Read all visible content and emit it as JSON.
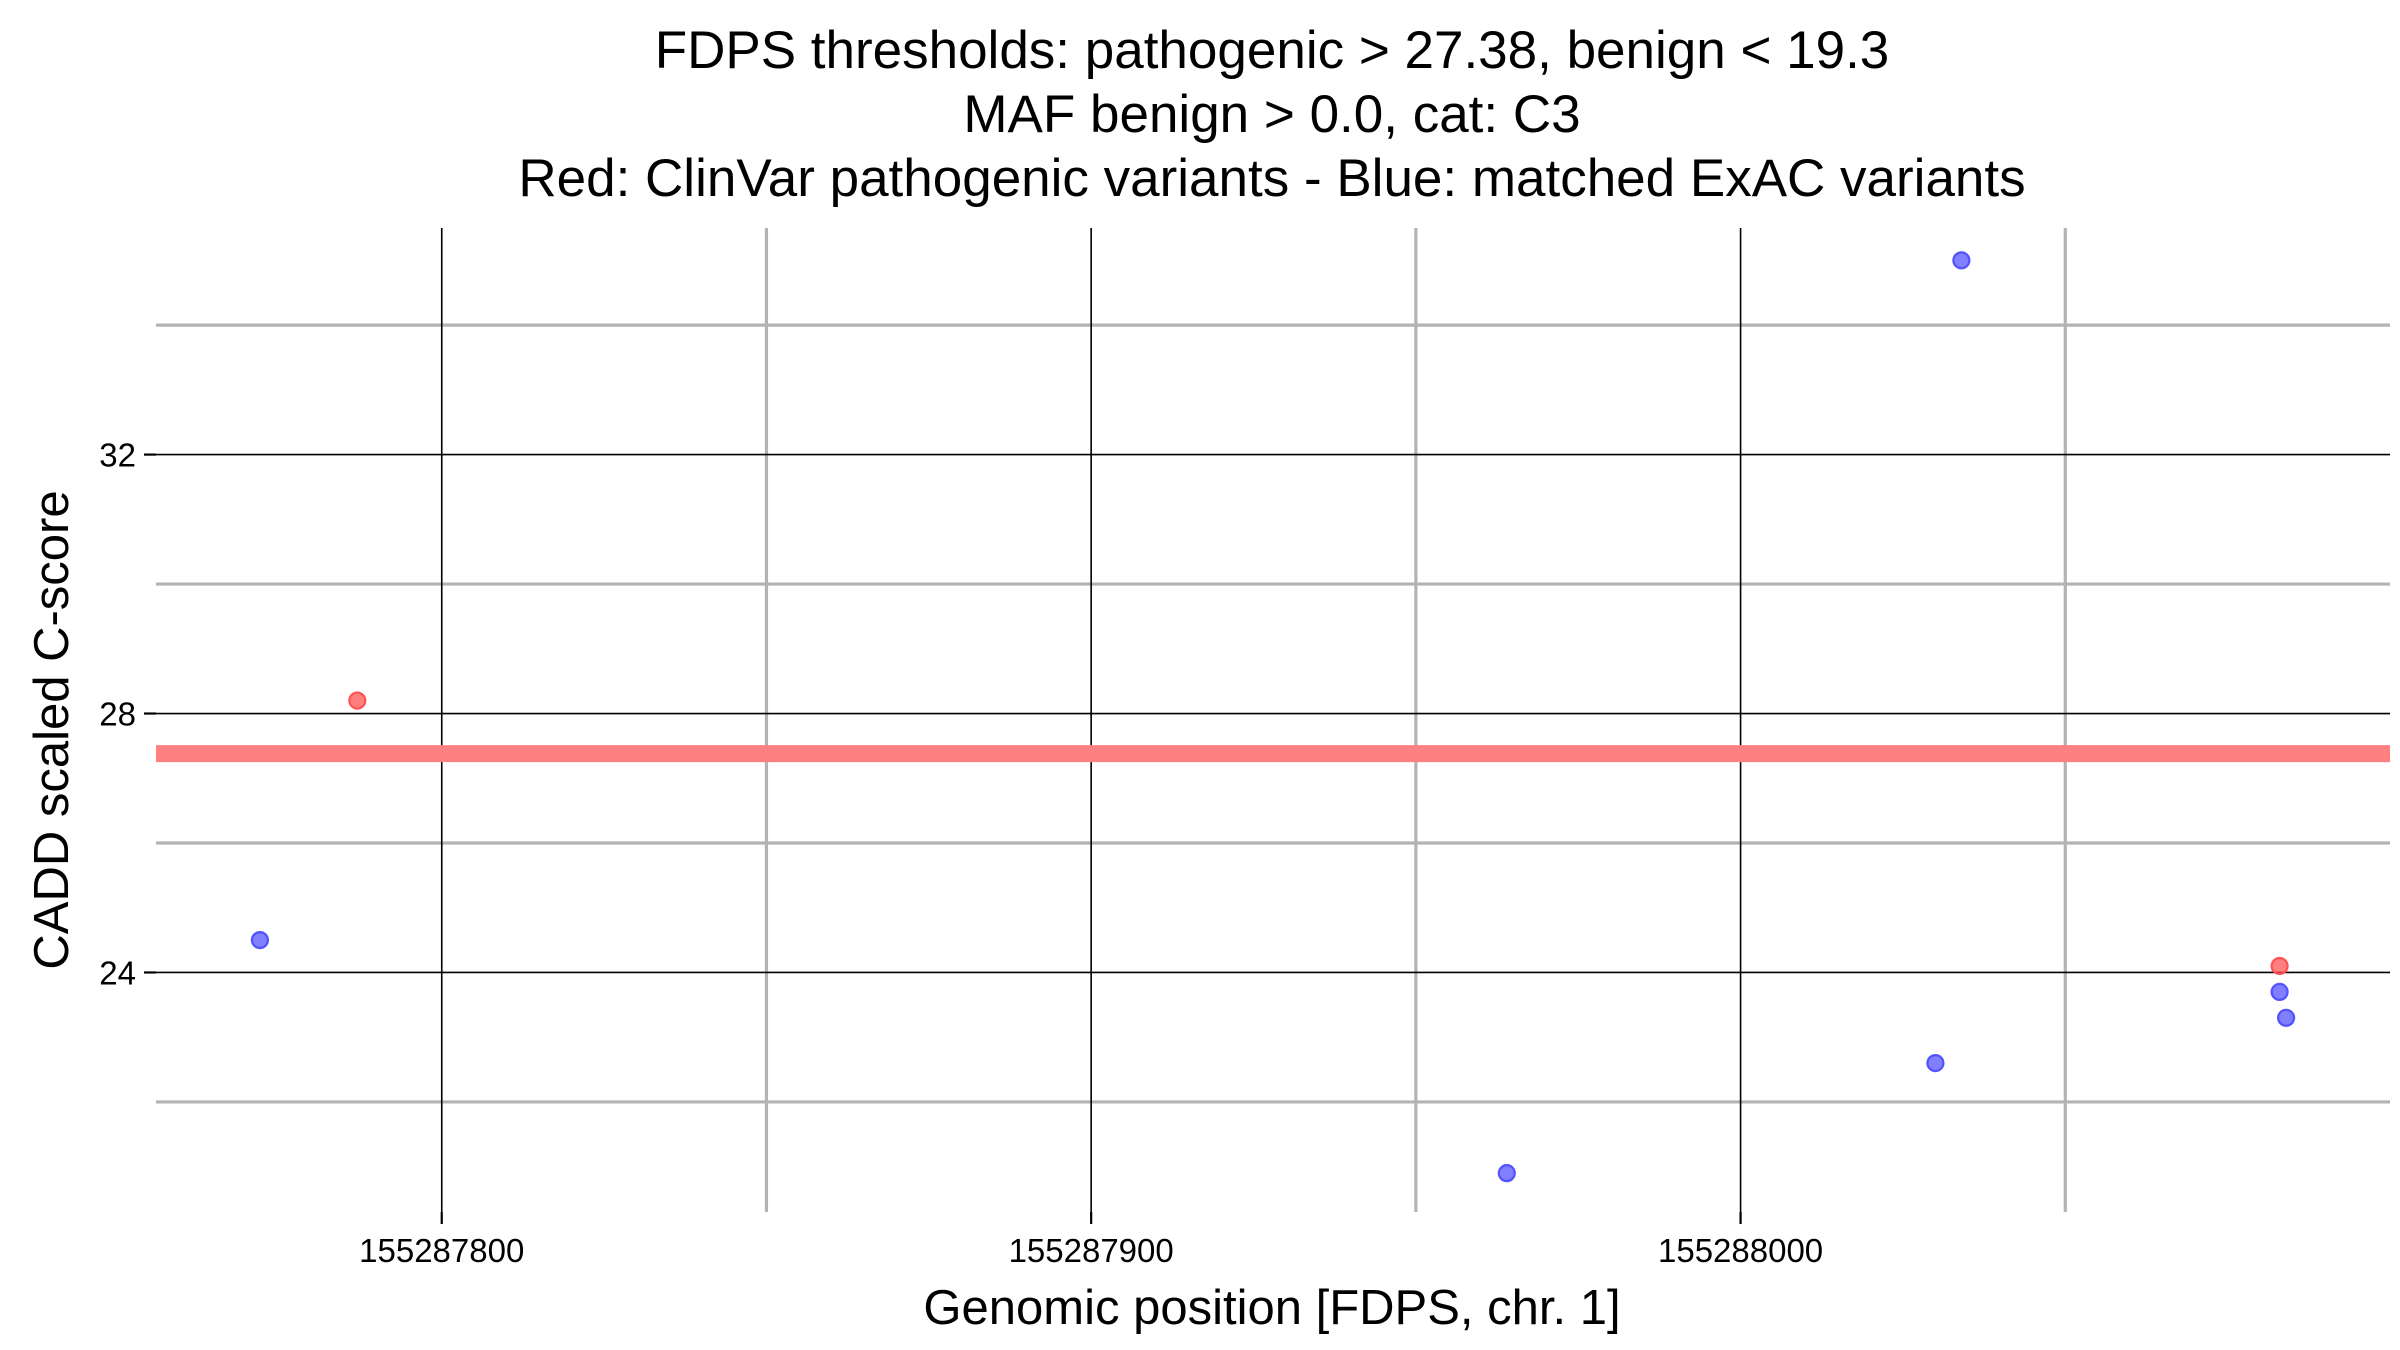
{
  "chart_data": {
    "type": "scatter",
    "title_lines": [
      "FDPS thresholds: pathogenic > 27.38, benign < 19.3",
      "MAF benign > 0.0, cat: C3",
      "Red: ClinVar pathogenic variants - Blue: matched ExAC variants"
    ],
    "xlabel": "Genomic position [FDPS, chr. 1]",
    "ylabel": "CADD scaled C-score",
    "xlim": [
      155287756,
      155288100
    ],
    "ylim": [
      20.3,
      35.5
    ],
    "x_major_ticks": [
      155287800,
      155287900,
      155288000
    ],
    "x_tick_labels": [
      "155287800",
      "155287900",
      "155288000"
    ],
    "x_minor_gridlines": [
      155287850,
      155287950,
      155288050
    ],
    "y_major_ticks": [
      24,
      28,
      32
    ],
    "y_tick_labels": [
      "24",
      "28",
      "32"
    ],
    "y_minor_gridlines": [
      22,
      26,
      30,
      34
    ],
    "threshold_line": {
      "y": 27.38,
      "color": "#ff8080"
    },
    "grid": true,
    "series": [
      {
        "color": "#ff4d4d",
        "points": [
          {
            "x": 155287787,
            "y": 28.2
          },
          {
            "x": 155288083,
            "y": 24.1
          }
        ]
      },
      {
        "color": "#4d4dff",
        "points": [
          {
            "x": 155287772,
            "y": 24.5
          },
          {
            "x": 155287964,
            "y": 20.9
          },
          {
            "x": 155288030,
            "y": 22.6
          },
          {
            "x": 155288034,
            "y": 35.0
          },
          {
            "x": 155288083,
            "y": 23.7
          },
          {
            "x": 155288084,
            "y": 23.3
          }
        ]
      }
    ]
  }
}
